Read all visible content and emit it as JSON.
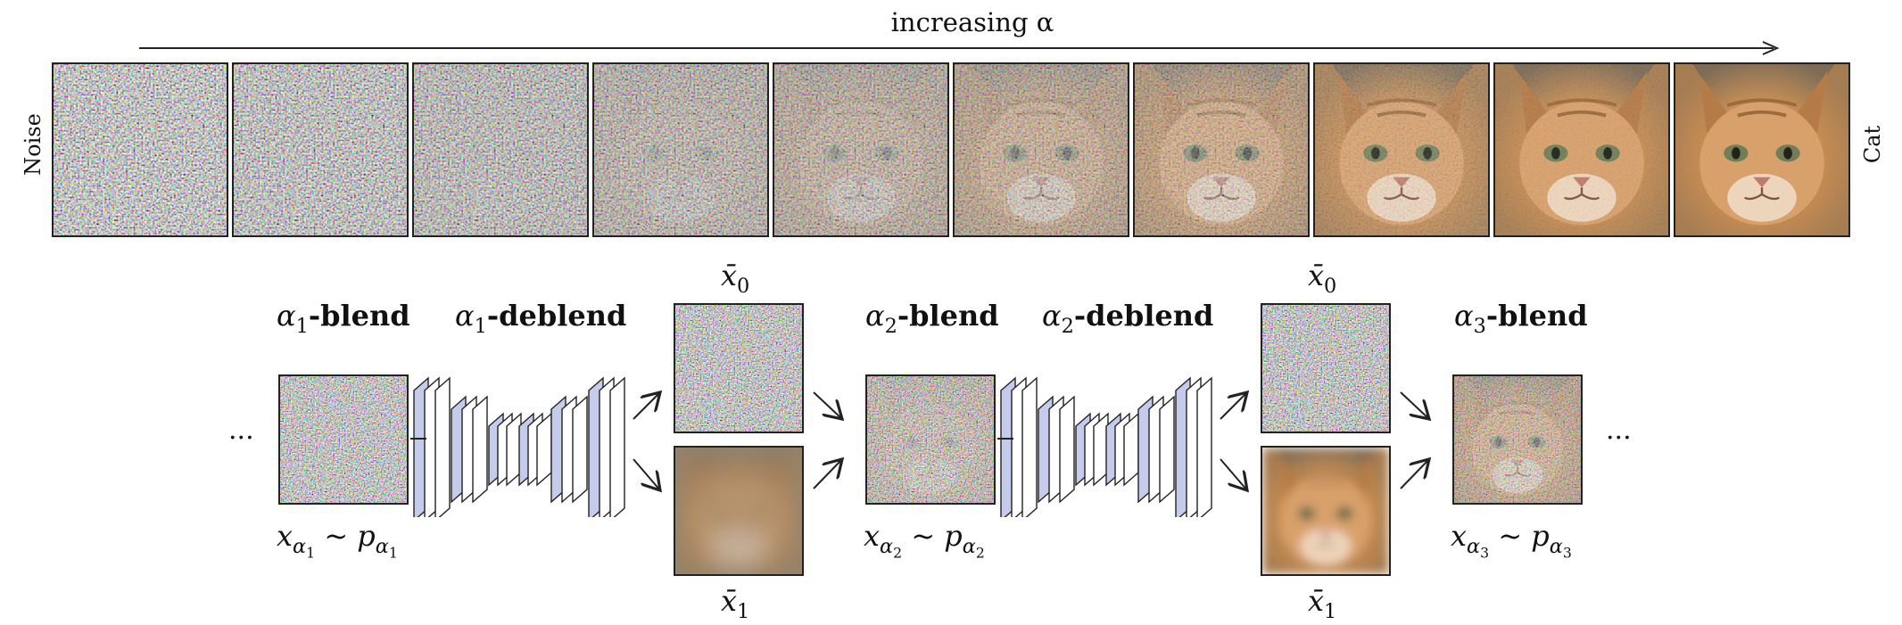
{
  "top_strip": {
    "axis_label": "increasing α",
    "left_label": "Noise",
    "right_label": "Cat",
    "tile_noise_levels": [
      1.0,
      0.95,
      0.85,
      0.72,
      0.62,
      0.52,
      0.42,
      0.18,
      0.08,
      0.02
    ]
  },
  "pipeline": {
    "ellipsis_left": "...",
    "ellipsis_right": "...",
    "stages": [
      {
        "blend_prefix": "α",
        "blend_sub": "1",
        "blend_word": "-blend",
        "deblend_prefix": "α",
        "deblend_sub": "1",
        "deblend_word": "-deblend",
        "x_base": "x",
        "x_sub": "α",
        "x_subsub": "1",
        "p_base": "p",
        "p_sub": "α",
        "p_subsub": "1",
        "x0": "x̄",
        "x0_sub": "0",
        "x1": "x̄",
        "x1_sub": "1"
      },
      {
        "blend_prefix": "α",
        "blend_sub": "2",
        "blend_word": "-blend",
        "deblend_prefix": "α",
        "deblend_sub": "2",
        "deblend_word": "-deblend",
        "x_base": "x",
        "x_sub": "α",
        "x_subsub": "2",
        "p_base": "p",
        "p_sub": "α",
        "p_subsub": "2",
        "x0": "x̄",
        "x0_sub": "0",
        "x1": "x̄",
        "x1_sub": "1"
      },
      {
        "blend_prefix": "α",
        "blend_sub": "3",
        "blend_word": "-blend",
        "x_base": "x",
        "x_sub": "α",
        "x_subsub": "3",
        "p_base": "p",
        "p_sub": "α",
        "p_subsub": "3"
      }
    ],
    "tilde": "~"
  },
  "colors": {
    "network_fill": "#c5cbea",
    "network_light": "#ffffff",
    "stroke": "#222222"
  }
}
